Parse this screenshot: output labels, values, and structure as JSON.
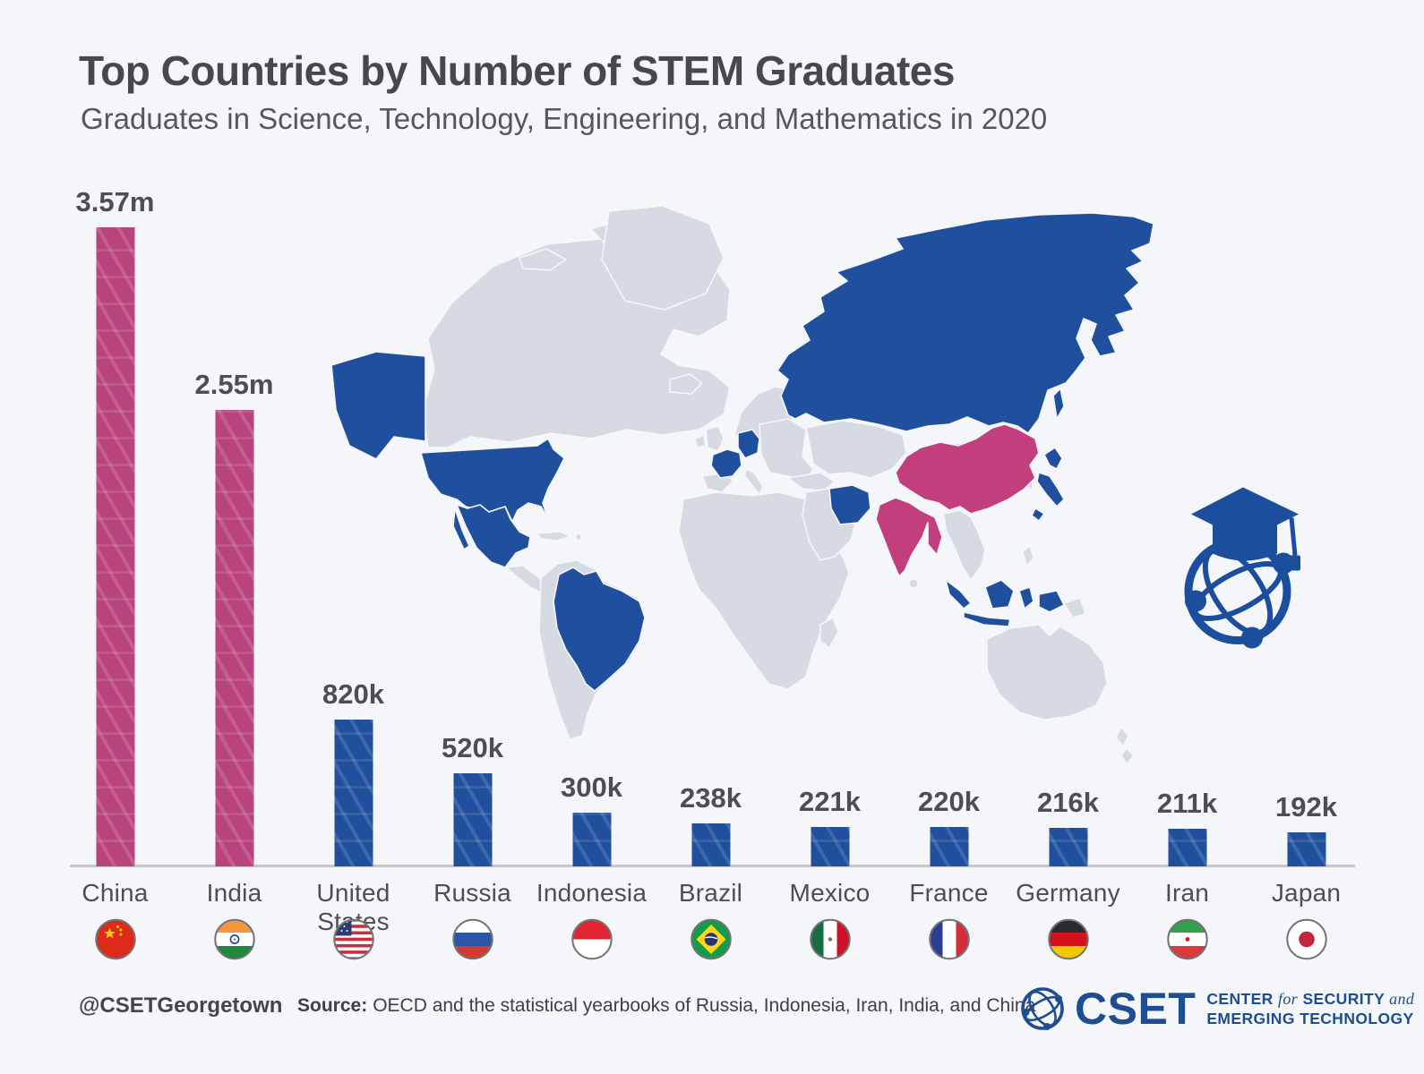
{
  "header": {
    "title": "Top Countries by Number of STEM Graduates",
    "subtitle": "Graduates in Science, Technology, Engineering, and Mathematics in 2020"
  },
  "chart_data": {
    "type": "bar",
    "title": "Top Countries by Number of STEM Graduates",
    "subtitle": "Graduates in Science, Technology, Engineering, and Mathematics in 2020",
    "categories": [
      "China",
      "India",
      "United States",
      "Russia",
      "Indonesia",
      "Brazil",
      "Mexico",
      "France",
      "Germany",
      "Iran",
      "Japan"
    ],
    "values": [
      3570000,
      2550000,
      820000,
      520000,
      300000,
      238000,
      221000,
      220000,
      216000,
      211000,
      192000
    ],
    "value_labels": [
      "3.57m",
      "2.55m",
      "820k",
      "520k",
      "300k",
      "238k",
      "221k",
      "220k",
      "216k",
      "211k",
      "192k"
    ],
    "bar_colors": [
      "#b9437c",
      "#b9437c",
      "#1f4f9d",
      "#1f4f9d",
      "#1f4f9d",
      "#1f4f9d",
      "#1f4f9d",
      "#1f4f9d",
      "#1f4f9d",
      "#1f4f9d",
      "#1f4f9d"
    ],
    "flag_icons": [
      "flag-china-icon",
      "flag-india-icon",
      "flag-united-states-icon",
      "flag-russia-icon",
      "flag-indonesia-icon",
      "flag-brazil-icon",
      "flag-mexico-icon",
      "flag-france-icon",
      "flag-germany-icon",
      "flag-iran-icon",
      "flag-japan-icon"
    ],
    "xlabel": "",
    "ylabel": "",
    "ylim": [
      0,
      3600000
    ],
    "grid": false,
    "legend": false
  },
  "map": {
    "type": "world-choropleth",
    "pink_countries": [
      "China",
      "India"
    ],
    "blue_countries": [
      "United States",
      "Mexico",
      "Brazil",
      "Russia",
      "France",
      "Germany",
      "Iran",
      "Indonesia",
      "Japan"
    ],
    "land_color": "#d5dae3",
    "blue_color": "#1f4f9d",
    "pink_color": "#c23e7d"
  },
  "icons": {
    "graduation_globe": "graduation-cap-globe-icon",
    "cset_globe": "cset-globe-icon"
  },
  "footer": {
    "handle": "@CSETGeorgetown",
    "source_label": "Source:",
    "source_text": "OECD and the statistical yearbooks of Russia, Indonesia, Iran, India, and China"
  },
  "logo": {
    "acronym": "CSET",
    "line1_word1": "CENTER",
    "line1_italic1": "for",
    "line1_word2": "SECURITY",
    "line1_italic2": "and",
    "line2": "EMERGING TECHNOLOGY"
  },
  "colors": {
    "bg": "#f4f6fa",
    "bar-pink": "#b9437c",
    "bar-blue": "#1f4f9d",
    "map-land": "#d5dae3",
    "map-blue": "#1f4f9d",
    "map-pink": "#c23e7d",
    "axis": "#c7c7cb",
    "text-dark": "#4d4e52",
    "navy": "#1e4e8f"
  }
}
